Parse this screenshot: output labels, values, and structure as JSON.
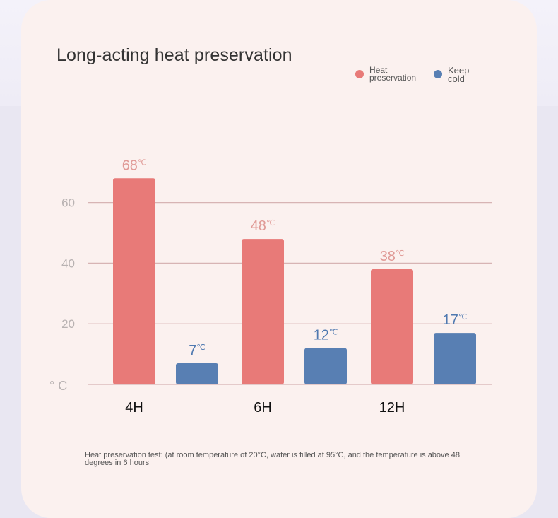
{
  "chart_data": {
    "type": "bar",
    "title": "Long-acting heat preservation",
    "categories": [
      "4H",
      "6H",
      "12H"
    ],
    "series": [
      {
        "name": "Heat preservation",
        "color": "#e87a78",
        "values": [
          68,
          48,
          38
        ],
        "labels": [
          "68",
          "48",
          "38"
        ]
      },
      {
        "name": "Keep cold",
        "color": "#587fb3",
        "values": [
          7,
          12,
          17
        ],
        "labels": [
          "7",
          "12",
          "17"
        ]
      }
    ],
    "unit": "℃",
    "yticks": [
      60,
      40,
      20
    ],
    "ylabel": "° C",
    "ylim": [
      0,
      78
    ],
    "grid": true,
    "legend": "top-right",
    "label_colors": {
      "Heat preservation": "#e09a96",
      "Keep cold": "#4f79b0"
    }
  },
  "legend": {
    "heat_label": "Heat preservation",
    "cold_label": "Keep cold",
    "heat_color": "#e87a78",
    "cold_color": "#587fb3"
  },
  "footnote": "Heat preservation test: (at room temperature of 20°C, water is filled at 95°C, and the temperature is above 48 degrees in 6 hours"
}
